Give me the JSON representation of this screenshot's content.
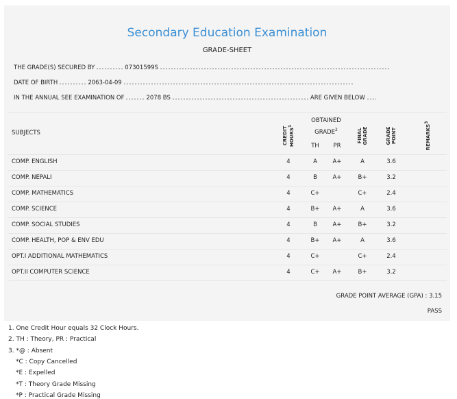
{
  "header": {
    "title": "Secondary Education Examination",
    "subtitle": "GRADE-SHEET"
  },
  "info": [
    {
      "label": "THE GRADE(S) SECURED BY",
      "value": "07301599S"
    },
    {
      "label": "DATE OF BIRTH",
      "value": "2063-04-09"
    },
    {
      "label": "IN THE ANNUAL SEE EXAMINATION OF",
      "value": "2078 BS",
      "suffix": "ARE GIVEN BELOW"
    }
  ],
  "table": {
    "headers": {
      "subjects": "SUBJECTS",
      "credit_hours": {
        "text": "CREDIT HOURS",
        "note": "1"
      },
      "obtained_grade": {
        "text": "OBTAINED GRADE",
        "note": "2"
      },
      "th": "TH",
      "pr": "PR",
      "final_grade": "FINAL GRADE",
      "grade_point": "GRADE POINT",
      "remarks": {
        "text": "REMARKS",
        "note": "3"
      }
    },
    "rows": [
      {
        "subject": "COMP. ENGLISH",
        "credit": 4,
        "th": "A",
        "pr": "A+",
        "final": "A",
        "gp": 3.6
      },
      {
        "subject": "COMP. NEPALI",
        "credit": 4,
        "th": "B",
        "pr": "A+",
        "final": "B+",
        "gp": 3.2
      },
      {
        "subject": "COMP. MATHEMATICS",
        "credit": 4,
        "th": "C+",
        "final": "C+",
        "gp": 2.4
      },
      {
        "subject": "COMP. SCIENCE",
        "credit": 4,
        "th": "B+",
        "pr": "A+",
        "final": "A",
        "gp": 3.6
      },
      {
        "subject": "COMP. SOCIAL STUDIES",
        "credit": 4,
        "th": "B",
        "pr": "A+",
        "final": "B+",
        "gp": 3.2
      },
      {
        "subject": "COMP. HEALTH, POP & ENV EDU",
        "credit": 4,
        "th": "B+",
        "pr": "A+",
        "final": "A",
        "gp": 3.6
      },
      {
        "subject": "OPT.I ADDITIONAL MATHEMATICS",
        "credit": 4,
        "th": "C+",
        "final": "C+",
        "gp": 2.4
      },
      {
        "subject": "OPT.II COMPUTER SCIENCE",
        "credit": 4,
        "th": "C+",
        "pr": "A+",
        "final": "B+",
        "gp": 3.2
      }
    ]
  },
  "summary": {
    "gpa_label": "GRADE POINT AVERAGE (GPA) :",
    "gpa": 3.15,
    "result": "PASS"
  },
  "notes": [
    "1. One Credit Hour equals 32 Clock Hours.",
    "2. TH : Theory, PR : Practical",
    "3. *@ : Absent",
    "*C : Copy Cancelled",
    "*E : Expelled",
    "*T : Theory Grade Missing",
    "*P : Practical Grade Missing"
  ]
}
